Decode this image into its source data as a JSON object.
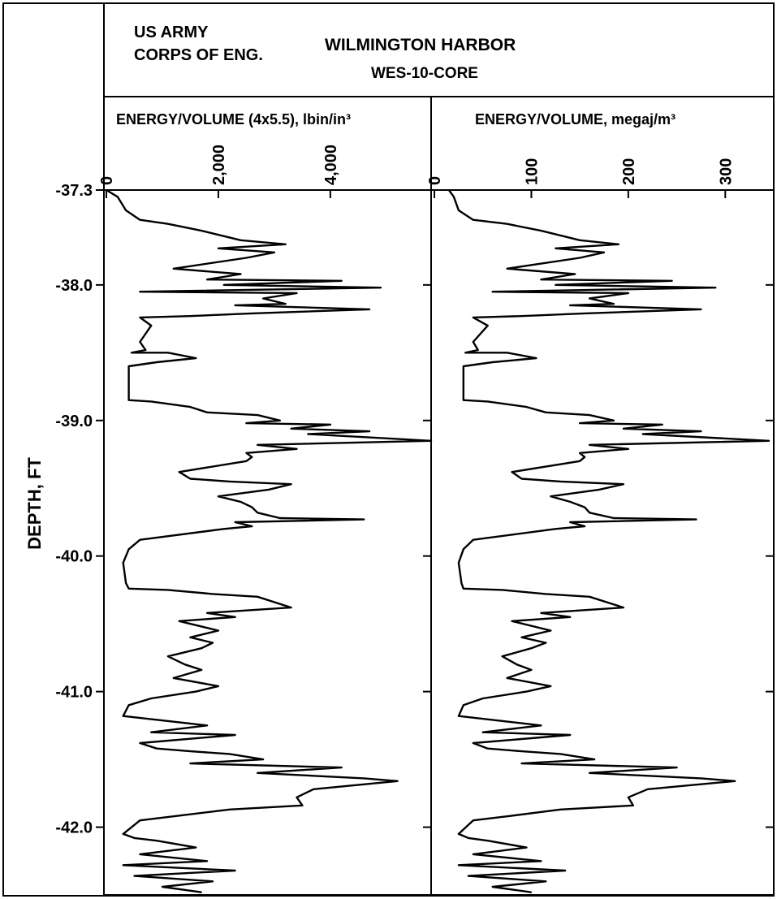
{
  "header": {
    "org_line1": "US ARMY",
    "org_line2": "CORPS OF ENG.",
    "title": "WILMINGTON HARBOR",
    "subtitle": "WES-10-CORE"
  },
  "y_axis_label": "DEPTH, FT",
  "colors": {
    "line": "#000000",
    "background": "#ffffff"
  },
  "chart_data": [
    {
      "type": "line",
      "title": "ENERGY/VOLUME (4x5.5), lbin/in³",
      "xlabel": "ENERGY/VOLUME (4x5.5), lbin/in³",
      "ylabel": "DEPTH, FT",
      "xlim": [
        0,
        5800
      ],
      "ylim": [
        -37.3,
        -42.5
      ],
      "x_ticks": [
        0,
        2000,
        4000
      ],
      "x_tick_labels": [
        "0",
        "2,000",
        "4,000"
      ],
      "y_ticks": [
        -37.3,
        -38.0,
        -39.0,
        -40.0,
        -41.0,
        -42.0
      ],
      "y_tick_labels": [
        "-37.3",
        "-38.0",
        "-39.0",
        "-40.0",
        "-41.0",
        "-42.0"
      ],
      "grid": false,
      "legend": "none",
      "points": [
        [
          0,
          -37.3
        ],
        [
          200,
          -37.35
        ],
        [
          350,
          -37.45
        ],
        [
          600,
          -37.52
        ],
        [
          1100,
          -37.55
        ],
        [
          1700,
          -37.6
        ],
        [
          2400,
          -37.67
        ],
        [
          3200,
          -37.7
        ],
        [
          2000,
          -37.73
        ],
        [
          3000,
          -37.76
        ],
        [
          2500,
          -37.8
        ],
        [
          1200,
          -37.88
        ],
        [
          2400,
          -37.92
        ],
        [
          1800,
          -37.96
        ],
        [
          4200,
          -37.97
        ],
        [
          2100,
          -38.0
        ],
        [
          4900,
          -38.02
        ],
        [
          600,
          -38.05
        ],
        [
          3400,
          -38.06
        ],
        [
          2800,
          -38.1
        ],
        [
          3200,
          -38.14
        ],
        [
          2300,
          -38.15
        ],
        [
          4700,
          -38.18
        ],
        [
          2600,
          -38.21
        ],
        [
          1500,
          -38.23
        ],
        [
          600,
          -38.24
        ],
        [
          800,
          -38.3
        ],
        [
          600,
          -38.42
        ],
        [
          700,
          -38.48
        ],
        [
          450,
          -38.5
        ],
        [
          1100,
          -38.5
        ],
        [
          1600,
          -38.54
        ],
        [
          900,
          -38.57
        ],
        [
          400,
          -38.6
        ],
        [
          400,
          -38.72
        ],
        [
          400,
          -38.85
        ],
        [
          800,
          -38.86
        ],
        [
          1500,
          -38.9
        ],
        [
          1800,
          -38.94
        ],
        [
          2700,
          -38.96
        ],
        [
          3100,
          -39.0
        ],
        [
          2500,
          -39.02
        ],
        [
          4000,
          -39.03
        ],
        [
          3300,
          -39.06
        ],
        [
          4700,
          -39.08
        ],
        [
          3600,
          -39.1
        ],
        [
          5800,
          -39.15
        ],
        [
          2700,
          -39.18
        ],
        [
          3400,
          -39.21
        ],
        [
          2500,
          -39.24
        ],
        [
          2600,
          -39.27
        ],
        [
          2500,
          -39.3
        ],
        [
          1300,
          -39.38
        ],
        [
          1500,
          -39.43
        ],
        [
          2200,
          -39.45
        ],
        [
          3300,
          -39.47
        ],
        [
          2900,
          -39.51
        ],
        [
          2000,
          -39.56
        ],
        [
          2400,
          -39.6
        ],
        [
          2600,
          -39.64
        ],
        [
          2700,
          -39.68
        ],
        [
          3100,
          -39.72
        ],
        [
          4600,
          -39.73
        ],
        [
          2300,
          -39.75
        ],
        [
          2600,
          -39.78
        ],
        [
          2100,
          -39.8
        ],
        [
          600,
          -39.88
        ],
        [
          400,
          -39.95
        ],
        [
          300,
          -40.05
        ],
        [
          350,
          -40.2
        ],
        [
          400,
          -40.24
        ],
        [
          1100,
          -40.25
        ],
        [
          1900,
          -40.28
        ],
        [
          2700,
          -40.3
        ],
        [
          3300,
          -40.38
        ],
        [
          1800,
          -40.42
        ],
        [
          2300,
          -40.45
        ],
        [
          1300,
          -40.48
        ],
        [
          2000,
          -40.55
        ],
        [
          1500,
          -40.6
        ],
        [
          1900,
          -40.64
        ],
        [
          1700,
          -40.68
        ],
        [
          1100,
          -40.74
        ],
        [
          1400,
          -40.8
        ],
        [
          1700,
          -40.84
        ],
        [
          1200,
          -40.9
        ],
        [
          2000,
          -40.96
        ],
        [
          1600,
          -41.0
        ],
        [
          800,
          -41.05
        ],
        [
          400,
          -41.1
        ],
        [
          300,
          -41.18
        ],
        [
          1800,
          -41.25
        ],
        [
          800,
          -41.3
        ],
        [
          2300,
          -41.32
        ],
        [
          600,
          -41.38
        ],
        [
          900,
          -41.42
        ],
        [
          1500,
          -41.44
        ],
        [
          2200,
          -41.46
        ],
        [
          2800,
          -41.5
        ],
        [
          1500,
          -41.53
        ],
        [
          4200,
          -41.56
        ],
        [
          2700,
          -41.6
        ],
        [
          4600,
          -41.64
        ],
        [
          5200,
          -41.66
        ],
        [
          3700,
          -41.72
        ],
        [
          3400,
          -41.78
        ],
        [
          3500,
          -41.84
        ],
        [
          2200,
          -41.87
        ],
        [
          1200,
          -41.92
        ],
        [
          600,
          -41.95
        ],
        [
          300,
          -42.05
        ],
        [
          500,
          -42.08
        ],
        [
          900,
          -42.1
        ],
        [
          1600,
          -42.15
        ],
        [
          600,
          -42.2
        ],
        [
          1800,
          -42.25
        ],
        [
          300,
          -42.28
        ],
        [
          2300,
          -42.32
        ],
        [
          500,
          -42.36
        ],
        [
          1900,
          -42.4
        ],
        [
          1000,
          -42.44
        ],
        [
          1700,
          -42.48
        ]
      ]
    },
    {
      "type": "line",
      "title": "ENERGY/VOLUME, megaj/m³",
      "xlabel": "ENERGY/VOLUME, megaj/m³",
      "ylabel": "DEPTH, FT",
      "xlim": [
        0,
        350
      ],
      "ylim": [
        -37.3,
        -42.5
      ],
      "x_ticks": [
        0,
        100,
        200,
        300
      ],
      "x_tick_labels": [
        "0",
        "100",
        "200",
        "300"
      ],
      "y_ticks": [
        -37.3,
        -38.0,
        -39.0,
        -40.0,
        -41.0,
        -42.0
      ],
      "y_tick_labels": [
        "-37.3",
        "-38.0",
        "-39.0",
        "-40.0",
        "-41.0",
        "-42.0"
      ],
      "grid": false,
      "legend": "none",
      "points": [
        [
          15,
          -37.3
        ],
        [
          20,
          -37.35
        ],
        [
          25,
          -37.45
        ],
        [
          40,
          -37.52
        ],
        [
          75,
          -37.55
        ],
        [
          110,
          -37.6
        ],
        [
          150,
          -37.67
        ],
        [
          190,
          -37.7
        ],
        [
          125,
          -37.73
        ],
        [
          175,
          -37.76
        ],
        [
          150,
          -37.8
        ],
        [
          75,
          -37.88
        ],
        [
          145,
          -37.92
        ],
        [
          110,
          -37.96
        ],
        [
          245,
          -37.97
        ],
        [
          125,
          -38.0
        ],
        [
          290,
          -38.02
        ],
        [
          60,
          -38.05
        ],
        [
          200,
          -38.06
        ],
        [
          160,
          -38.1
        ],
        [
          185,
          -38.14
        ],
        [
          140,
          -38.15
        ],
        [
          275,
          -38.18
        ],
        [
          155,
          -38.21
        ],
        [
          90,
          -38.23
        ],
        [
          40,
          -38.24
        ],
        [
          55,
          -38.3
        ],
        [
          40,
          -38.42
        ],
        [
          45,
          -38.48
        ],
        [
          32,
          -38.5
        ],
        [
          75,
          -38.5
        ],
        [
          105,
          -38.54
        ],
        [
          60,
          -38.57
        ],
        [
          30,
          -38.6
        ],
        [
          30,
          -38.72
        ],
        [
          30,
          -38.85
        ],
        [
          55,
          -38.86
        ],
        [
          95,
          -38.9
        ],
        [
          115,
          -38.94
        ],
        [
          160,
          -38.96
        ],
        [
          185,
          -39.0
        ],
        [
          150,
          -39.02
        ],
        [
          235,
          -39.03
        ],
        [
          195,
          -39.06
        ],
        [
          275,
          -39.08
        ],
        [
          215,
          -39.1
        ],
        [
          345,
          -39.15
        ],
        [
          160,
          -39.18
        ],
        [
          200,
          -39.21
        ],
        [
          150,
          -39.24
        ],
        [
          155,
          -39.27
        ],
        [
          150,
          -39.3
        ],
        [
          80,
          -39.38
        ],
        [
          90,
          -39.43
        ],
        [
          130,
          -39.45
        ],
        [
          195,
          -39.47
        ],
        [
          170,
          -39.51
        ],
        [
          120,
          -39.56
        ],
        [
          140,
          -39.6
        ],
        [
          155,
          -39.64
        ],
        [
          160,
          -39.68
        ],
        [
          185,
          -39.72
        ],
        [
          270,
          -39.73
        ],
        [
          140,
          -39.75
        ],
        [
          155,
          -39.78
        ],
        [
          125,
          -39.8
        ],
        [
          40,
          -39.88
        ],
        [
          30,
          -39.95
        ],
        [
          25,
          -40.05
        ],
        [
          28,
          -40.2
        ],
        [
          30,
          -40.24
        ],
        [
          70,
          -40.25
        ],
        [
          115,
          -40.28
        ],
        [
          160,
          -40.3
        ],
        [
          195,
          -40.38
        ],
        [
          110,
          -40.42
        ],
        [
          140,
          -40.45
        ],
        [
          80,
          -40.48
        ],
        [
          120,
          -40.55
        ],
        [
          90,
          -40.6
        ],
        [
          115,
          -40.64
        ],
        [
          100,
          -40.68
        ],
        [
          70,
          -40.74
        ],
        [
          85,
          -40.8
        ],
        [
          100,
          -40.84
        ],
        [
          75,
          -40.9
        ],
        [
          120,
          -40.96
        ],
        [
          95,
          -41.0
        ],
        [
          50,
          -41.05
        ],
        [
          30,
          -41.1
        ],
        [
          25,
          -41.18
        ],
        [
          110,
          -41.25
        ],
        [
          50,
          -41.3
        ],
        [
          140,
          -41.32
        ],
        [
          40,
          -41.38
        ],
        [
          55,
          -41.42
        ],
        [
          90,
          -41.44
        ],
        [
          130,
          -41.46
        ],
        [
          165,
          -41.5
        ],
        [
          90,
          -41.53
        ],
        [
          250,
          -41.56
        ],
        [
          160,
          -41.6
        ],
        [
          275,
          -41.64
        ],
        [
          310,
          -41.66
        ],
        [
          220,
          -41.72
        ],
        [
          200,
          -41.78
        ],
        [
          205,
          -41.84
        ],
        [
          130,
          -41.87
        ],
        [
          75,
          -41.92
        ],
        [
          40,
          -41.95
        ],
        [
          25,
          -42.05
        ],
        [
          35,
          -42.08
        ],
        [
          55,
          -42.1
        ],
        [
          95,
          -42.15
        ],
        [
          40,
          -42.2
        ],
        [
          110,
          -42.25
        ],
        [
          25,
          -42.28
        ],
        [
          135,
          -42.32
        ],
        [
          35,
          -42.36
        ],
        [
          115,
          -42.4
        ],
        [
          60,
          -42.44
        ],
        [
          100,
          -42.48
        ]
      ]
    }
  ]
}
